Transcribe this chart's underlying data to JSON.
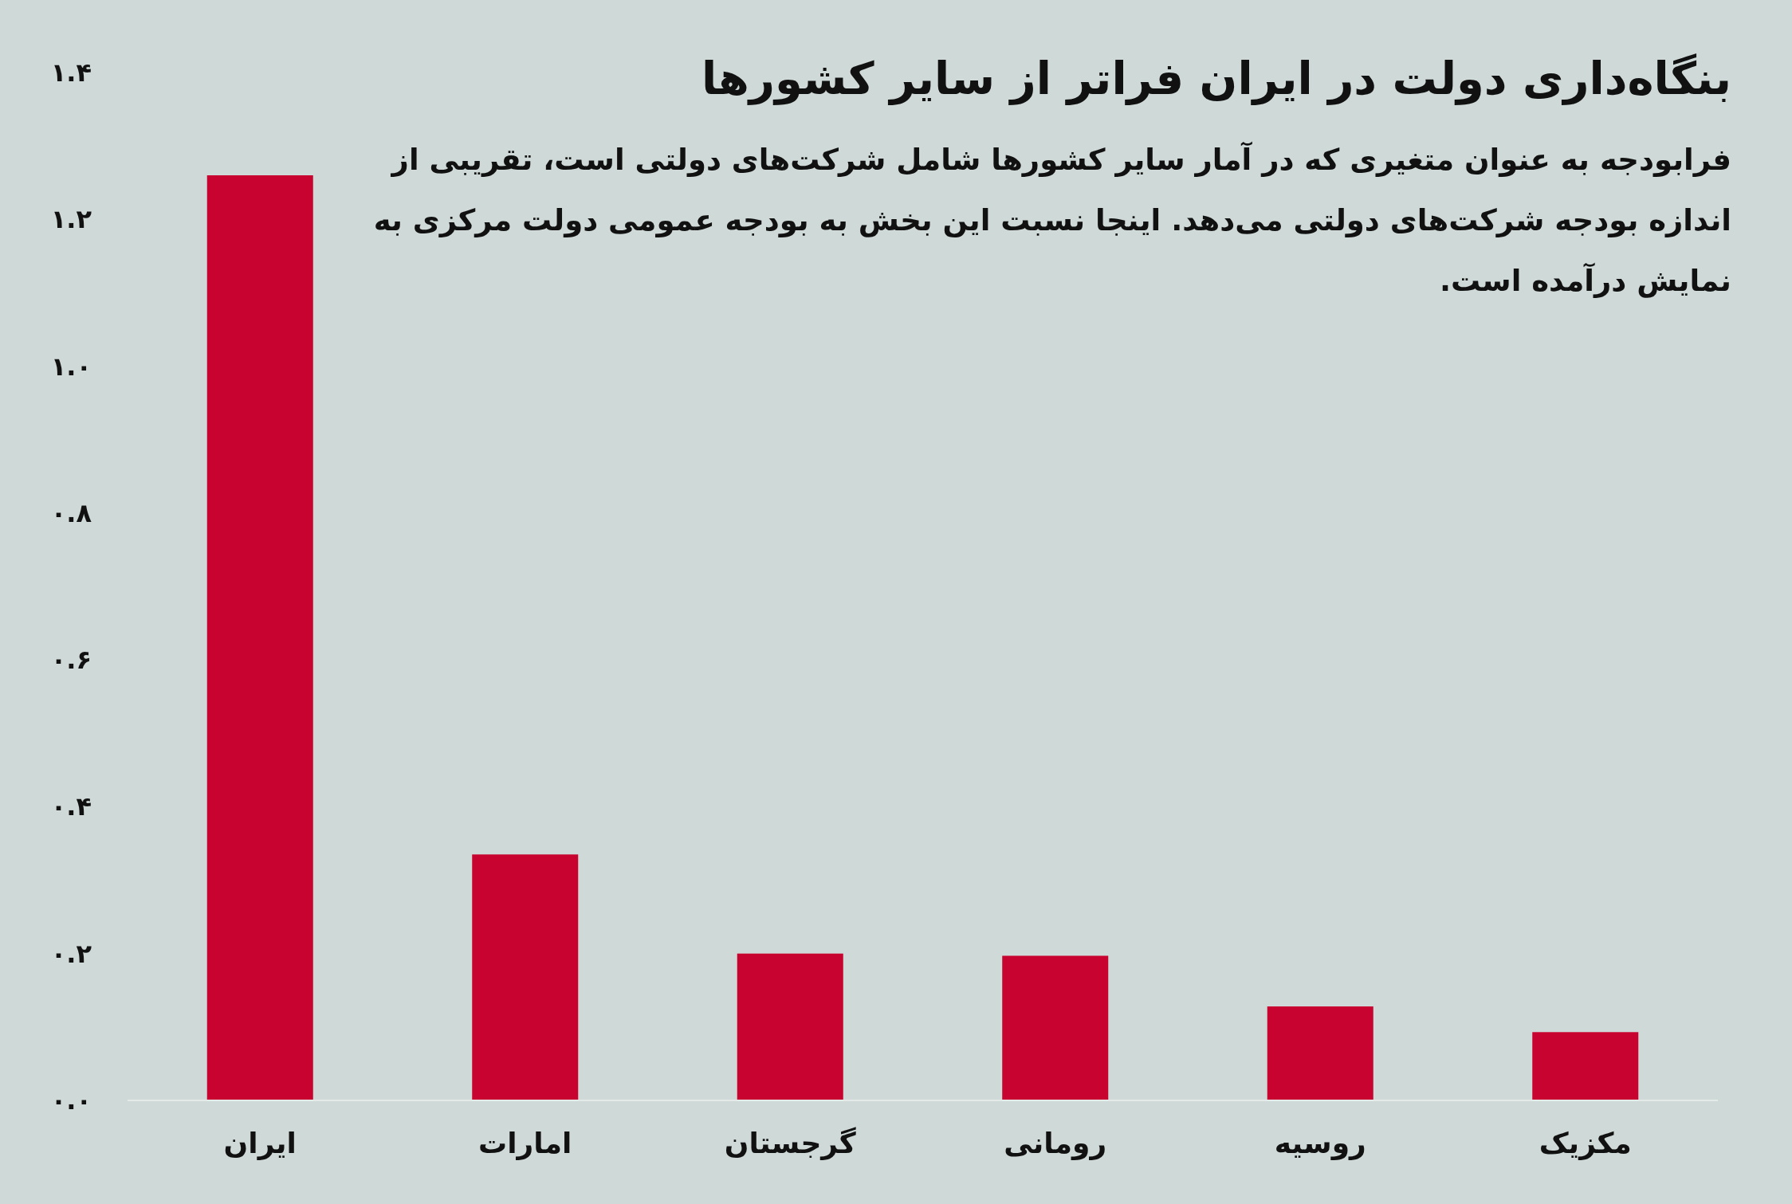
{
  "chart_data": {
    "type": "bar",
    "title": "بنگاه‌داری دولت در ایران فراتر از سایر کشورها",
    "subtitle": "فرابودجه به عنوان متغیری که در آمار سایر کشورها شامل شرکت‌های دولتی است، تقریبی از اندازه بودجه شرکت‌های دولتی می‌دهد. اینجا نسبت این بخش به بودجه عمومی دولت مرکزی به نمایش درآمده است.",
    "categories": [
      "ایران",
      "امارات",
      "گرجستان",
      "رومانی",
      "روسیه",
      "مکزیک"
    ],
    "values": [
      1.26,
      0.335,
      0.2,
      0.197,
      0.128,
      0.093
    ],
    "color": "#c8032f",
    "ylim": [
      0,
      1.4
    ],
    "yticks": [
      {
        "value": 0,
        "label": "۰.۰"
      },
      {
        "value": 0.2,
        "label": "۰.۲"
      },
      {
        "value": 0.4,
        "label": "۰.۴"
      },
      {
        "value": 0.6,
        "label": "۰.۶"
      },
      {
        "value": 0.8,
        "label": "۰.۸"
      },
      {
        "value": 1.0,
        "label": "۱.۰"
      },
      {
        "value": 1.2,
        "label": "۱.۲"
      },
      {
        "value": 1.4,
        "label": "۱.۴"
      }
    ]
  }
}
